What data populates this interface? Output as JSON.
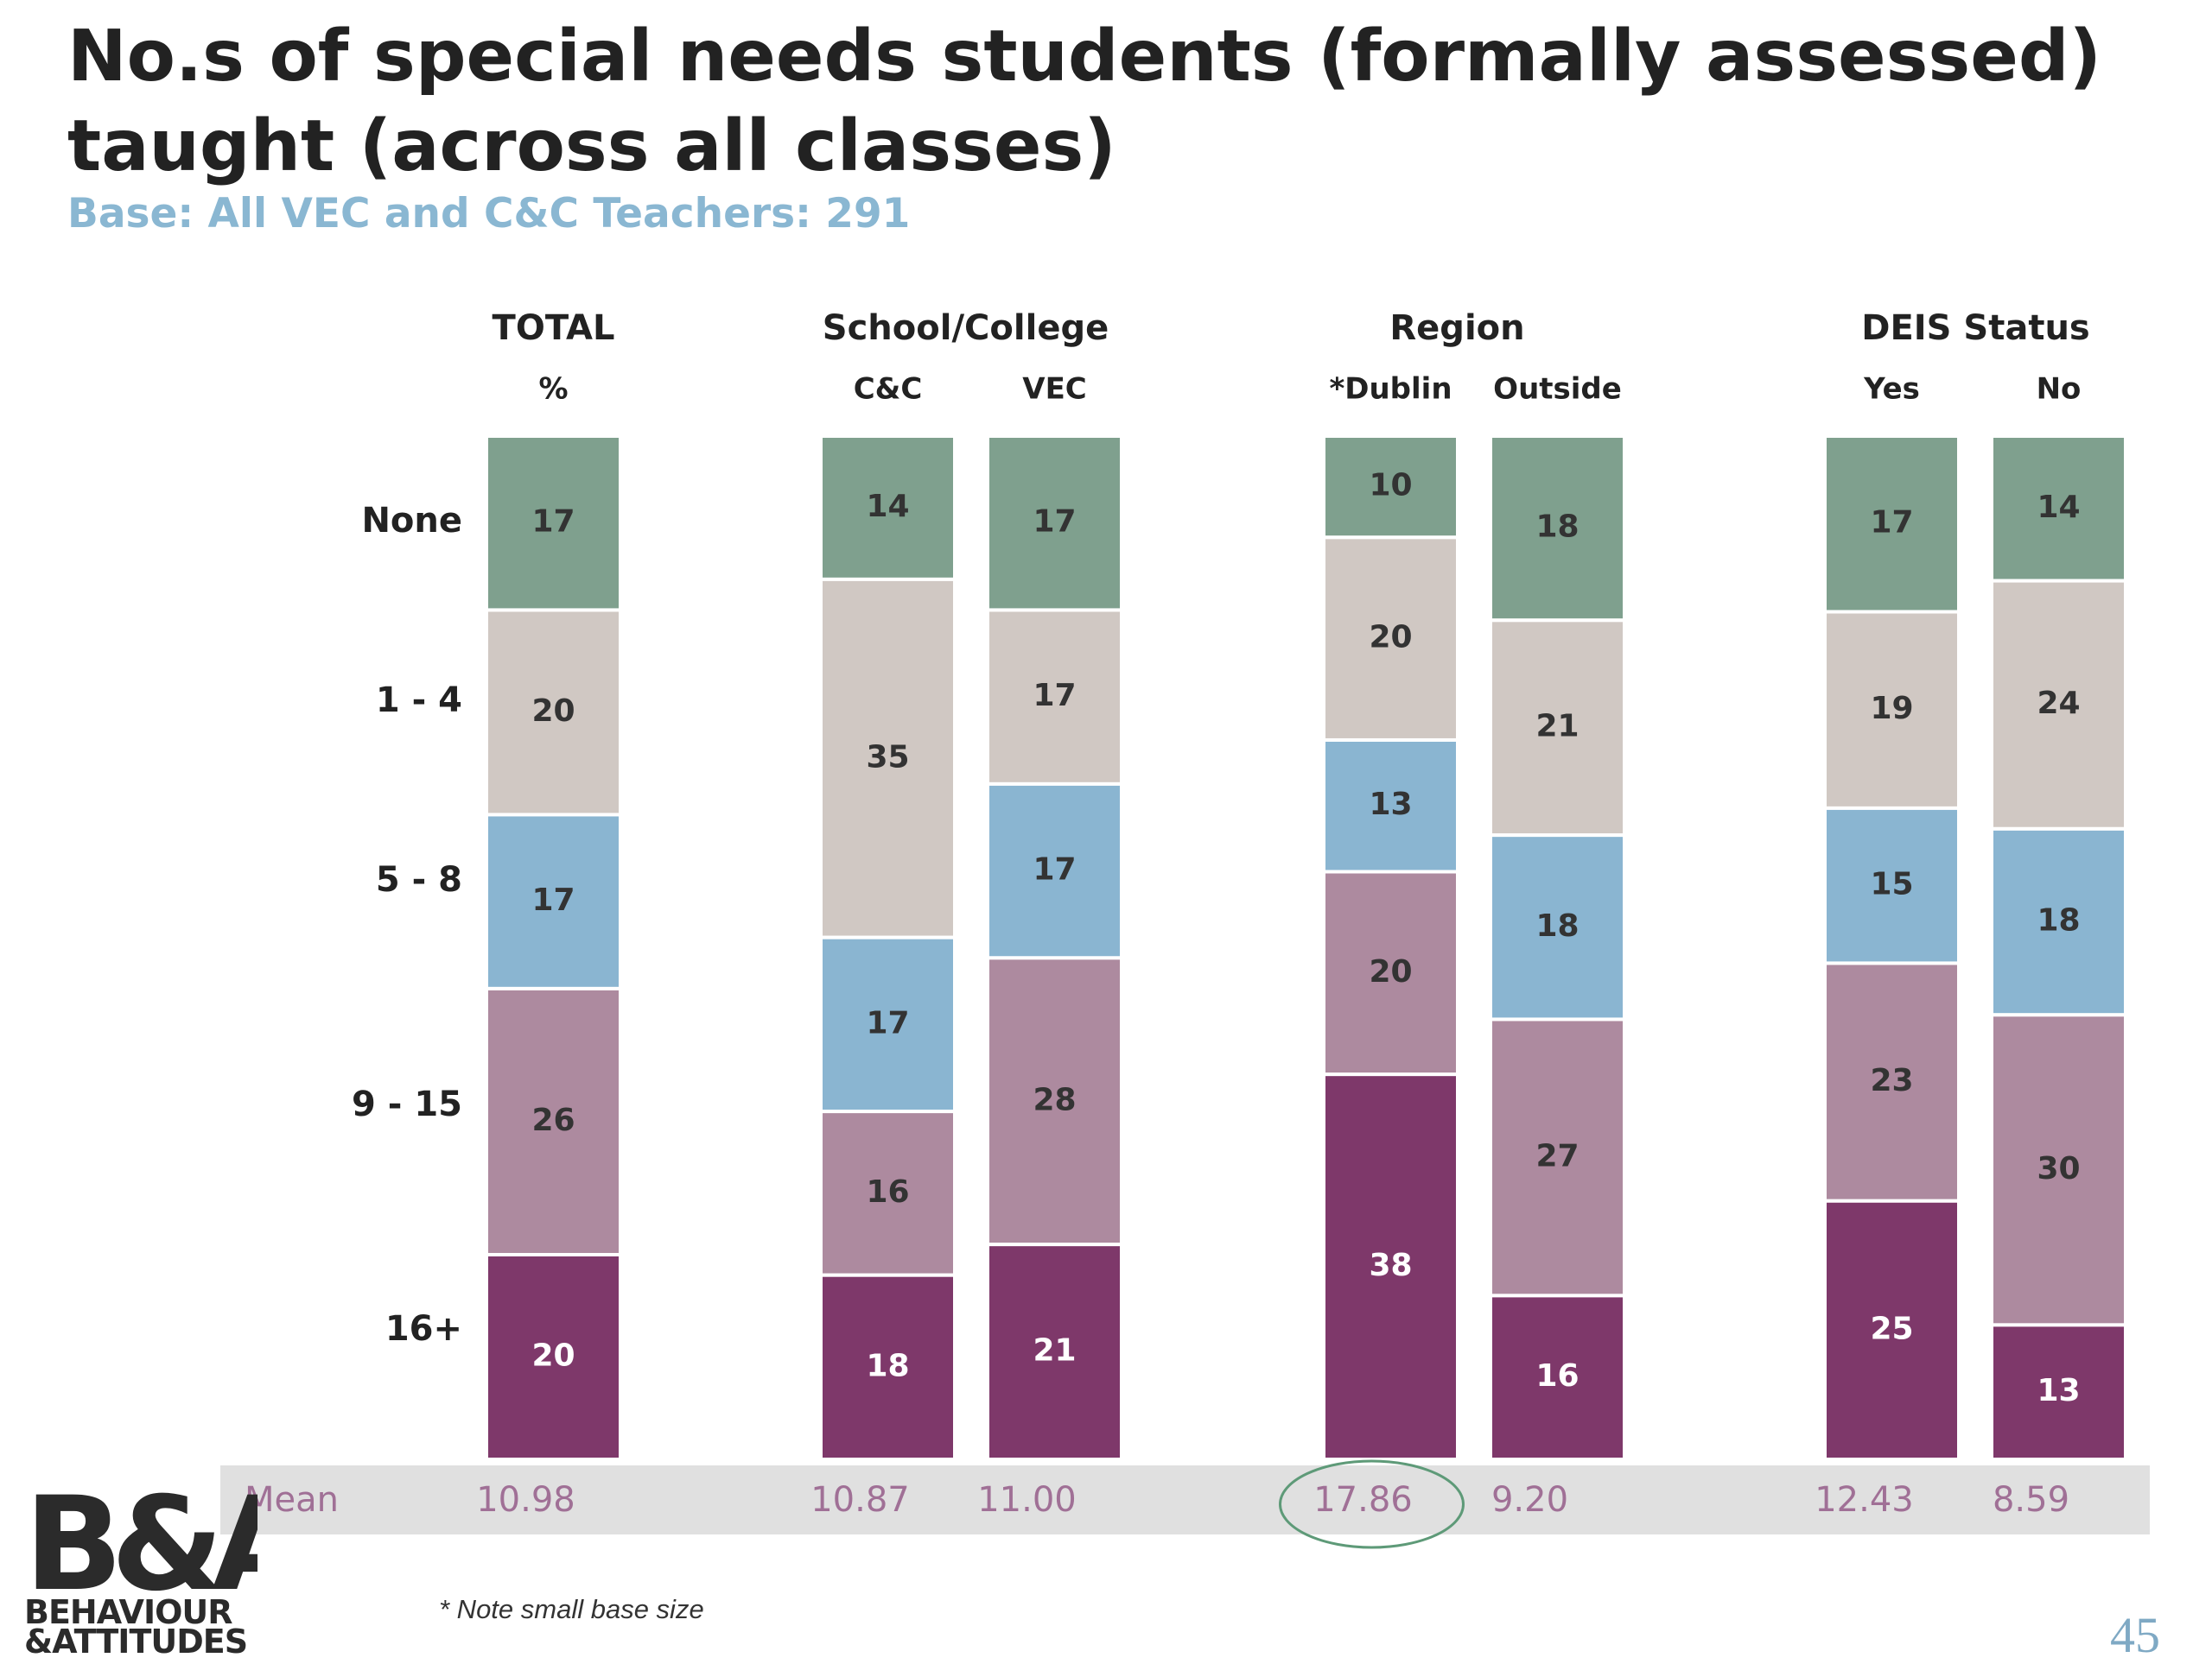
{
  "title": "No.s of special needs students (formally assessed) taught (across all classes)",
  "subtitle": "Base: All VEC and C&C Teachers: 291",
  "footnote": "* Note small base size",
  "page_number": "45",
  "logo": {
    "line1": "B&A",
    "line2": "BEHAVIOUR",
    "line3": "&ATTITUDES"
  },
  "colors": {
    "None": "#7fa08e",
    "1 - 4": "#d0c8c3",
    "5 - 8": "#8ab5d1",
    "9 - 15": "#ad8a9f",
    "16+": "#7e386a",
    "mean_band": "#e0e0e0",
    "mean_text": "#a07096",
    "highlight_circle": "#5e9a78"
  },
  "chart_data": {
    "type": "bar",
    "stacked": true,
    "unit": "%",
    "groups": [
      {
        "name": "TOTAL",
        "subheaders": [
          "%"
        ],
        "columns": [
          "TOTAL"
        ]
      },
      {
        "name": "School/College",
        "subheaders": [
          "C&C",
          "VEC"
        ],
        "columns": [
          "C&C",
          "VEC"
        ]
      },
      {
        "name": "Region",
        "subheaders": [
          "*Dublin",
          "Outside"
        ],
        "columns": [
          "*Dublin",
          "Outside"
        ]
      },
      {
        "name": "DEIS Status",
        "subheaders": [
          "Yes",
          "No"
        ],
        "columns": [
          "Yes",
          "No"
        ]
      }
    ],
    "categories": [
      "None",
      "1 - 4",
      "5 - 8",
      "9 - 15",
      "16+"
    ],
    "columns": [
      {
        "name": "TOTAL",
        "values": [
          17,
          20,
          17,
          26,
          20
        ],
        "mean": "10.98"
      },
      {
        "name": "C&C",
        "values": [
          14,
          35,
          17,
          16,
          18
        ],
        "mean": "10.87"
      },
      {
        "name": "VEC",
        "values": [
          17,
          17,
          17,
          28,
          21
        ],
        "mean": "11.00"
      },
      {
        "name": "*Dublin",
        "values": [
          10,
          20,
          13,
          20,
          38
        ],
        "mean": "17.86",
        "highlight": true
      },
      {
        "name": "Outside",
        "values": [
          18,
          21,
          18,
          27,
          16
        ],
        "mean": "9.20"
      },
      {
        "name": "Yes",
        "values": [
          17,
          19,
          15,
          23,
          25
        ],
        "mean": "12.43"
      },
      {
        "name": "No",
        "values": [
          14,
          24,
          18,
          30,
          13
        ],
        "mean": "8.59"
      }
    ],
    "mean_label": "Mean"
  }
}
